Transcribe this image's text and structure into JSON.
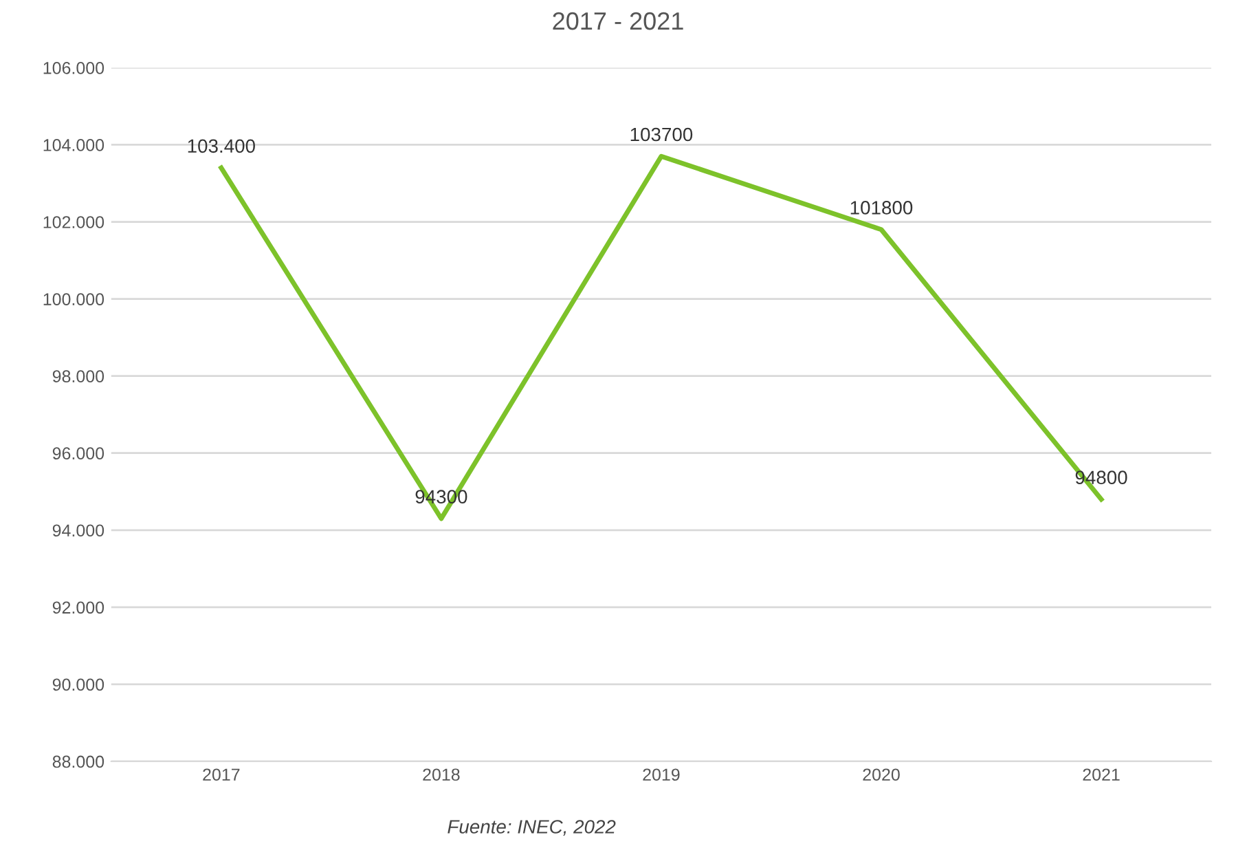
{
  "chart_data": {
    "type": "line",
    "title": "2017 - 2021",
    "categories": [
      "2017",
      "2018",
      "2019",
      "2020",
      "2021"
    ],
    "series": [
      {
        "color": "#7dc22a",
        "values": [
          103400,
          94300,
          103700,
          101800,
          94800
        ],
        "value_labels": [
          "103.400",
          "94300",
          "103700",
          "101800",
          "94800"
        ]
      }
    ],
    "ylim": [
      88000,
      106000
    ],
    "yticks": [
      {
        "value": 88000,
        "label": "88.000"
      },
      {
        "value": 90000,
        "label": "90.000"
      },
      {
        "value": 92000,
        "label": "92.000"
      },
      {
        "value": 94000,
        "label": "94.000"
      },
      {
        "value": 96000,
        "label": "96.000"
      },
      {
        "value": 98000,
        "label": "98.000"
      },
      {
        "value": 100000,
        "label": "100.000"
      },
      {
        "value": 102000,
        "label": "102.000"
      },
      {
        "value": 104000,
        "label": "104.000"
      },
      {
        "value": 106000,
        "label": "106.000"
      }
    ],
    "grid": "y",
    "marker": "none",
    "line_style": "solid",
    "legend": false,
    "annotations": [
      "Fuente: INEC, 2022"
    ]
  }
}
